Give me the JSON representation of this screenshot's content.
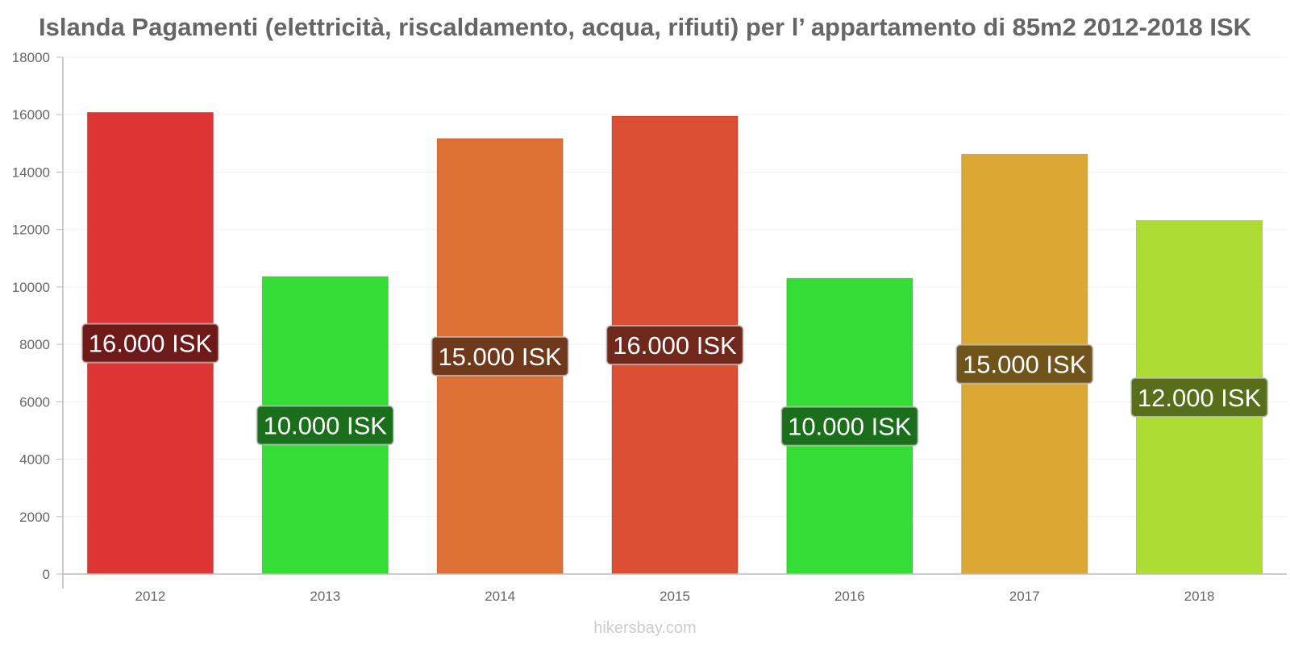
{
  "chart_data": {
    "type": "bar",
    "title": "Islanda Pagamenti (elettricità, riscaldamento, acqua, rifiuti) per l’ appartamento di 85m2 2012-2018 ISK",
    "xlabel": "",
    "ylabel": "",
    "categories": [
      "2012",
      "2013",
      "2014",
      "2015",
      "2016",
      "2017",
      "2018"
    ],
    "values": [
      16080,
      10360,
      15170,
      15950,
      10300,
      14620,
      12310
    ],
    "data_labels": [
      "16.000 ISK",
      "10.000 ISK",
      "15.000 ISK",
      "16.000 ISK",
      "10.000 ISK",
      "15.000 ISK",
      "12.000 ISK"
    ],
    "bar_colors": [
      "#dd3434",
      "#36dd37",
      "#dd7035",
      "#dd4f35",
      "#36dd37",
      "#dda735",
      "#addd35"
    ],
    "label_box_colors": [
      "#6f1a1a",
      "#1b6f1c",
      "#6f381b",
      "#6f281b",
      "#1b6f1c",
      "#6f541b",
      "#576f1b"
    ],
    "ylim": [
      0,
      18000
    ],
    "yticks": [
      0,
      2000,
      4000,
      6000,
      8000,
      10000,
      12000,
      14000,
      16000,
      18000
    ],
    "grid": true,
    "legend": "none"
  },
  "watermark": "hikersbay.com"
}
